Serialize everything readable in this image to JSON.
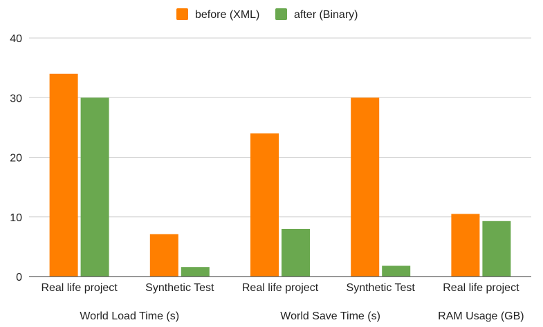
{
  "chart_data": {
    "type": "bar",
    "categories": [
      {
        "label": "Real life project",
        "group": "World Load Time (s)"
      },
      {
        "label": "Synthetic Test",
        "group": "World Load Time (s)"
      },
      {
        "label": "Real life project",
        "group": "World Save Time (s)"
      },
      {
        "label": "Synthetic Test",
        "group": "World Save Time (s)"
      },
      {
        "label": "Real life project",
        "group": "RAM Usage (GB)"
      }
    ],
    "groups": [
      "World Load Time (s)",
      "World Save Time (s)",
      "RAM Usage (GB)"
    ],
    "series": [
      {
        "name": "before (XML)",
        "color": "#ff7f00",
        "values": [
          34,
          7.1,
          24,
          30,
          10.5
        ]
      },
      {
        "name": "after (Binary)",
        "color": "#6aa84f",
        "values": [
          30,
          1.6,
          8,
          1.8,
          9.3
        ]
      }
    ],
    "ylim": [
      0,
      40
    ],
    "yticks": [
      0,
      10,
      20,
      30,
      40
    ],
    "grid": true,
    "legend_position": "top-center"
  }
}
